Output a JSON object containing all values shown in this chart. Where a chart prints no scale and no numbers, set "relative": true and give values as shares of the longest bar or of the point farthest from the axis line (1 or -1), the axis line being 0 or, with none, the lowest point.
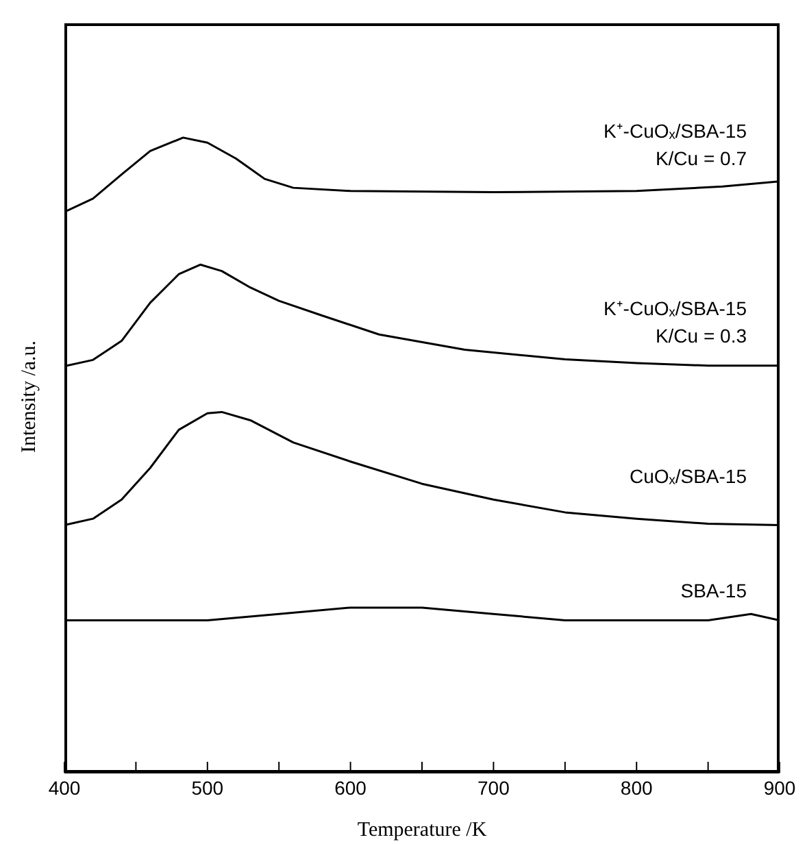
{
  "chart_data": {
    "type": "line",
    "xlabel": "Temperature /K",
    "ylabel": "Intensity /a.u.",
    "relative": true,
    "marker": "none",
    "xlim": [
      400,
      900
    ],
    "xticks": [
      400,
      {
        "value": 450,
        "label": null
      },
      500,
      {
        "value": 550,
        "label": null
      },
      600,
      {
        "value": 650,
        "label": null
      },
      700,
      {
        "value": 750,
        "label": null
      },
      800,
      {
        "value": 850,
        "label": null
      },
      900
    ],
    "series": [
      {
        "name": "SBA-15",
        "color": "#000000",
        "x": [
          400,
          450,
          500,
          550,
          600,
          650,
          700,
          750,
          800,
          850,
          880,
          900
        ],
        "values": [
          0.24,
          0.24,
          0.24,
          0.25,
          0.26,
          0.26,
          0.25,
          0.24,
          0.24,
          0.24,
          0.25,
          0.24
        ]
      },
      {
        "name": "CuOₓ/SBA-15",
        "color": "#000000",
        "x": [
          400,
          420,
          440,
          460,
          480,
          500,
          510,
          530,
          560,
          600,
          650,
          700,
          750,
          800,
          850,
          900
        ],
        "values": [
          0.39,
          0.4,
          0.43,
          0.48,
          0.54,
          0.566,
          0.568,
          0.555,
          0.52,
          0.49,
          0.455,
          0.43,
          0.41,
          0.4,
          0.392,
          0.39
        ]
      },
      {
        "name": "K⁺-CuOₓ/SBA-15 K/Cu = 0.3",
        "color": "#000000",
        "x": [
          400,
          420,
          440,
          460,
          480,
          495,
          510,
          530,
          550,
          580,
          620,
          680,
          750,
          800,
          850,
          900
        ],
        "values": [
          0.64,
          0.65,
          0.68,
          0.74,
          0.785,
          0.8,
          0.79,
          0.764,
          0.743,
          0.72,
          0.69,
          0.666,
          0.651,
          0.645,
          0.641,
          0.641
        ]
      },
      {
        "name": "K⁺-CuOₓ/SBA-15 K/Cu = 0.7",
        "color": "#000000",
        "x": [
          400,
          420,
          440,
          460,
          483,
          500,
          520,
          540,
          560,
          600,
          700,
          800,
          860,
          900
        ],
        "values": [
          0.883,
          0.904,
          0.942,
          0.979,
          1,
          0.992,
          0.967,
          0.935,
          0.921,
          0.916,
          0.914,
          0.916,
          0.923,
          0.931
        ]
      }
    ]
  }
}
